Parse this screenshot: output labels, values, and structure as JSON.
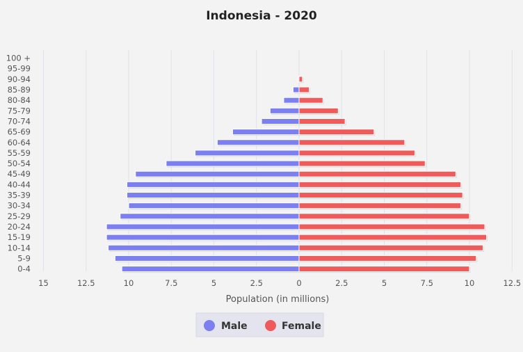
{
  "chart_data": {
    "type": "bar",
    "title": "Indonesia - 2020",
    "xlabel": "Population (in millions)",
    "ylabel": "",
    "categories": [
      "0-4",
      "5-9",
      "10-14",
      "15-19",
      "20-24",
      "25-29",
      "30-34",
      "35-39",
      "40-44",
      "45-49",
      "50-54",
      "55-59",
      "60-64",
      "65-69",
      "70-74",
      "75-79",
      "80-84",
      "85-89",
      "90-94",
      "95-99",
      "100 +"
    ],
    "series": [
      {
        "name": "Male",
        "color": "#7b7ff0",
        "values": [
          10.4,
          10.8,
          11.2,
          11.3,
          11.3,
          10.5,
          10.0,
          10.1,
          10.1,
          9.6,
          7.8,
          6.1,
          4.8,
          3.9,
          2.2,
          1.7,
          0.9,
          0.35,
          0.05,
          0.0,
          0.0
        ]
      },
      {
        "name": "Female",
        "color": "#ef5b5b",
        "values": [
          10.0,
          10.4,
          10.8,
          11.0,
          10.9,
          10.0,
          9.5,
          9.6,
          9.5,
          9.2,
          7.4,
          6.8,
          6.2,
          4.4,
          2.7,
          2.3,
          1.4,
          0.6,
          0.2,
          0.0,
          0.0
        ]
      }
    ],
    "xlim": [
      -15,
      13
    ],
    "x_ticks": [
      -15,
      -12.5,
      -10,
      -7.5,
      -5,
      -2.5,
      0,
      2.5,
      5,
      7.5,
      10,
      12.5
    ],
    "x_tick_labels": [
      "15",
      "12.5",
      "10",
      "7.5",
      "5",
      "2.5",
      "0",
      "2.5",
      "5",
      "7.5",
      "10",
      "12.5"
    ],
    "grid": true,
    "legend_position": "bottom"
  }
}
